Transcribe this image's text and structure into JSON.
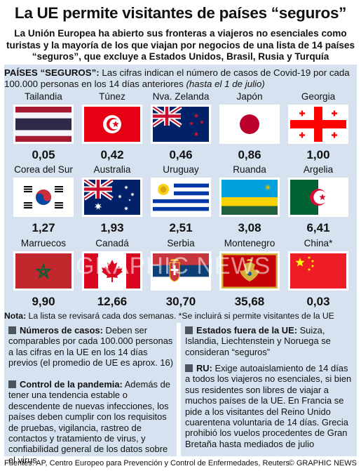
{
  "title": "La UE permite visitantes de países “seguros”",
  "subtitle": "La Unión Europea ha abierto sus fronteras a viajeros no esenciales como turistas y la mayoría de los que viajan por negocios de una lista de 14 países “seguros”, que excluye a Estados Unidos, Brasil, Rusia y Turquía",
  "intro": {
    "lead": "PAÍSES “SEGUROS”:",
    "text": " Las cifras indican el número de casos de Covid-19 por cada  100.000 personas en los 14 días anteriores ",
    "italic": "(hasta el 1 de julio)"
  },
  "countries": [
    {
      "name": "Tailandia",
      "value": "0,05",
      "flag": "thailand"
    },
    {
      "name": "Túnez",
      "value": "0,42",
      "flag": "tunisia"
    },
    {
      "name": "Nva. Zelanda",
      "value": "0,46",
      "flag": "new-zealand"
    },
    {
      "name": "Japón",
      "value": "0,86",
      "flag": "japan"
    },
    {
      "name": "Georgia",
      "value": "1,00",
      "flag": "georgia"
    },
    {
      "name": "Corea del Sur",
      "value": "1,27",
      "flag": "south-korea"
    },
    {
      "name": "Australia",
      "value": "1,93",
      "flag": "australia"
    },
    {
      "name": "Uruguay",
      "value": "2,51",
      "flag": "uruguay"
    },
    {
      "name": "Ruanda",
      "value": "3,08",
      "flag": "rwanda"
    },
    {
      "name": "Argelia",
      "value": "6,41",
      "flag": "algeria"
    },
    {
      "name": "Marruecos",
      "value": "9,90",
      "flag": "morocco"
    },
    {
      "name": "Canadá",
      "value": "12,66",
      "flag": "canada"
    },
    {
      "name": "Serbia",
      "value": "30,70",
      "flag": "serbia"
    },
    {
      "name": "Montenegro",
      "value": "35,68",
      "flag": "montenegro"
    },
    {
      "name": "China*",
      "value": "0,03",
      "flag": "china"
    }
  ],
  "note": {
    "label": "Nota:",
    "text": " La lista se revisará cada dos semanas. *Se incluirá si permite visitantes de la UE"
  },
  "left_box": [
    {
      "heading": "Números de casos:",
      "text": " Deben ser comparables por cada 100.000 personas a las cifras en la UE en los 14 días previos (el promedio de UE es aprox. 16)"
    },
    {
      "heading": "Control de la pandemia:",
      "text": " Además de tener una tendencia estable o descendente de nuevas infecciones, los países deben cumplir con los requisitos de pruebas, vigilancia, rastreo de contactos y tratamiento de virus, y confiabilidad general de los datos sobre el virus"
    }
  ],
  "right_box": [
    {
      "heading": "Estados fuera de la UE:",
      "text": " Suiza, Islandia, Liechtenstein y Noruega se consideran “seguros”"
    },
    {
      "heading": "RU:",
      "text": " Exige autoaislamiento de 14 días a todos los viajeros no esenciales, si bien sus residentes son libres de viajar a muchos países de la UE. En Francia se pide a los visitantes del Reino Unido cuarentena voluntaria de 14 días. Grecia prohibió los vuelos procedentes de Gran Bretaña hasta mediados de julio"
    }
  ],
  "footer": {
    "sources": "Fuentes: AP, Centro Europeo para Prevención y Control de Enfermedades, Reuters",
    "credit": "© GRAPHIC NEWS"
  },
  "watermark": "GRAPHIC NEWS",
  "colors": {
    "panel": "#d6e2ef",
    "bullet": "#4d5460"
  }
}
